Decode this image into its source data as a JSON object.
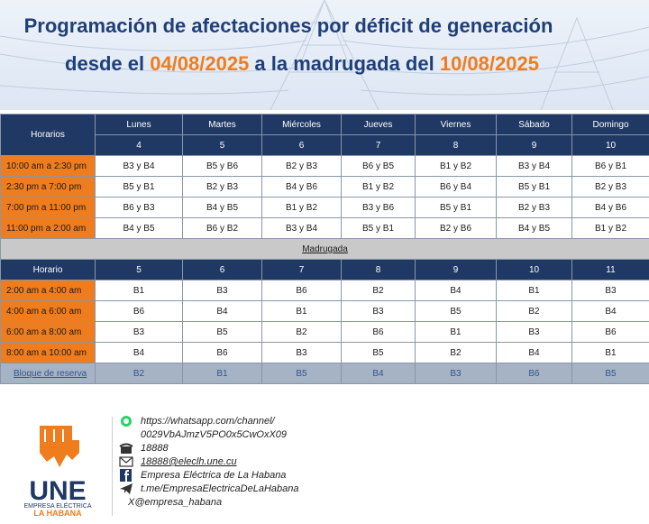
{
  "header": {
    "title_line1": "Programación de afectaciones por déficit de generación",
    "title_line2_pre": "desde el ",
    "date_from": "04/08/2025",
    "title_line2_mid": " a la madrugada del ",
    "date_to": "10/08/2025"
  },
  "colors": {
    "navy": "#1f3864",
    "orange": "#ef7d1e",
    "title": "#1f3f7a"
  },
  "day_table": {
    "corner_label": "Horarios",
    "days": [
      {
        "name": "Lunes",
        "num": "4"
      },
      {
        "name": "Martes",
        "num": "5"
      },
      {
        "name": "Miércoles",
        "num": "6"
      },
      {
        "name": "Jueves",
        "num": "7"
      },
      {
        "name": "Viernes",
        "num": "8"
      },
      {
        "name": "Sábado",
        "num": "9"
      },
      {
        "name": "Domingo",
        "num": "10"
      }
    ],
    "rows": [
      {
        "time": "10:00 am a 2:30 pm",
        "cells": [
          "B3 y B4",
          "B5 y B6",
          "B2 y B3",
          "B6 y B5",
          "B1 y B2",
          "B3 y B4",
          "B6 y B1"
        ]
      },
      {
        "time": "2:30 pm a 7:00 pm",
        "cells": [
          "B5 y B1",
          "B2 y B3",
          "B4 y B6",
          "B1 y B2",
          "B6 y B4",
          "B5 y B1",
          "B2 y B3"
        ]
      },
      {
        "time": "7:00 pm a 11:00 pm",
        "cells": [
          "B6 y B3",
          "B4 y B5",
          "B1 y B2",
          "B3 y B6",
          "B5 y B1",
          "B2 y B3",
          "B4 y B6"
        ]
      },
      {
        "time": "11:00 pm a 2:00 am",
        "cells": [
          "B4 y B5",
          "B6 y B2",
          "B3 y B4",
          "B5 y B1",
          "B2 y B6",
          "B4 y B5",
          "B1 y B2"
        ]
      }
    ]
  },
  "madrugada": {
    "band_label": "Madrugada",
    "corner_label": "Horario",
    "nums": [
      "5",
      "6",
      "7",
      "8",
      "9",
      "10",
      "11"
    ],
    "rows": [
      {
        "time": "2:00 am a 4:00 am",
        "cells": [
          "B1",
          "B3",
          "B6",
          "B2",
          "B4",
          "B1",
          "B3"
        ]
      },
      {
        "time": "4:00 am a 6:00 am",
        "cells": [
          "B6",
          "B4",
          "B1",
          "B3",
          "B5",
          "B2",
          "B4"
        ]
      },
      {
        "time": "6:00 am a 8:00 am",
        "cells": [
          "B3",
          "B5",
          "B2",
          "B6",
          "B1",
          "B3",
          "B6"
        ]
      },
      {
        "time": "8:00 am a 10:00 am",
        "cells": [
          "B4",
          "B6",
          "B3",
          "B5",
          "B2",
          "B4",
          "B1"
        ]
      }
    ],
    "reserve": {
      "label": "Bloque de reserva",
      "cells": [
        "B2",
        "B1",
        "B5",
        "B4",
        "B3",
        "B6",
        "B5"
      ]
    }
  },
  "footer": {
    "logo_text": "UNE",
    "logo_sub1": "EMPRESA ELÉCTRICA",
    "logo_sub2": "LA HABANA",
    "whatsapp_line1": "https://whatsapp.com/channel/",
    "whatsapp_line2": "0029VbAJmzV5PO0x5CwOxX09",
    "phone": "18888",
    "email": "18888@eleclh.une.cu",
    "facebook": "Empresa Eléctrica de La Habana",
    "telegram": "t.me/EmpresaElectricaDeLaHabana",
    "x_handle": "@empresa_habana"
  }
}
